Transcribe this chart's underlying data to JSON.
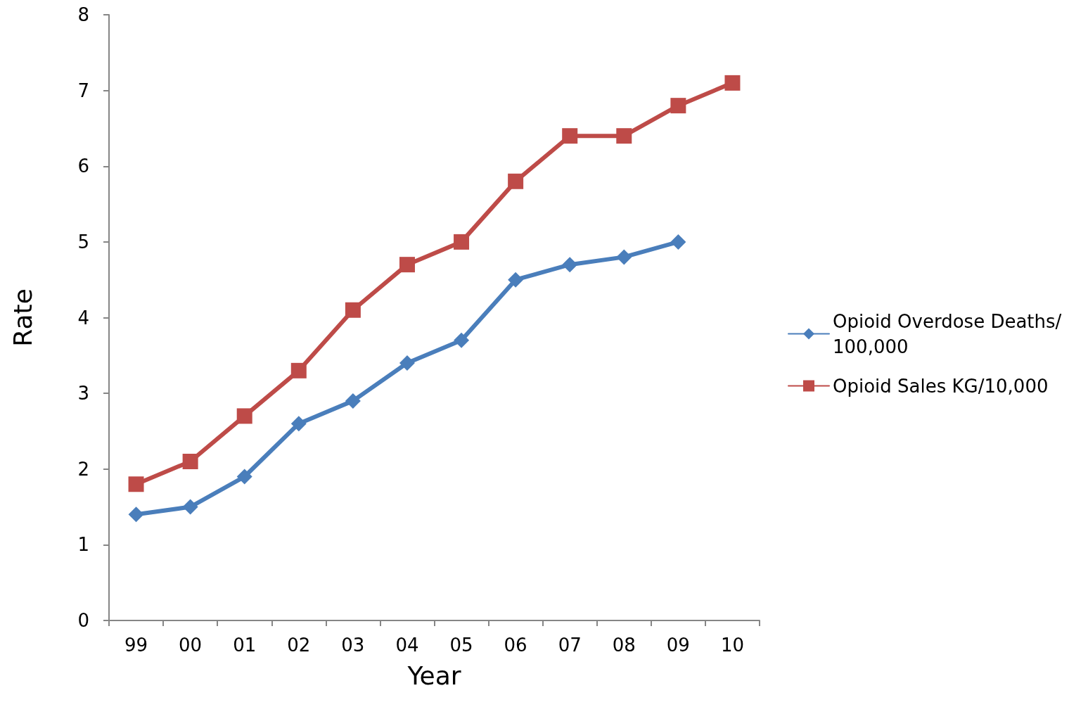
{
  "chart_data": {
    "type": "line",
    "xlabel": "Year",
    "ylabel": "Rate",
    "categories": [
      "99",
      "00",
      "01",
      "02",
      "03",
      "04",
      "05",
      "06",
      "07",
      "08",
      "09",
      "10"
    ],
    "series": [
      {
        "name": "Opioid Overdose Deaths/100,000",
        "color": "#4a7ebb",
        "marker": "diamond",
        "values": [
          1.4,
          1.5,
          1.9,
          2.6,
          2.9,
          3.4,
          3.7,
          4.5,
          4.7,
          4.8,
          5.0,
          null
        ]
      },
      {
        "name": "Opioid Sales KG/10,000",
        "color": "#be4b48",
        "marker": "square",
        "values": [
          1.8,
          2.1,
          2.7,
          3.3,
          4.1,
          4.7,
          5.0,
          5.8,
          6.4,
          6.4,
          6.8,
          7.1
        ]
      }
    ],
    "ylim": [
      0,
      8
    ],
    "yticks": [
      0,
      1,
      2,
      3,
      4,
      5,
      6,
      7,
      8
    ],
    "grid": false,
    "legend": "right",
    "line_style": "solid"
  }
}
